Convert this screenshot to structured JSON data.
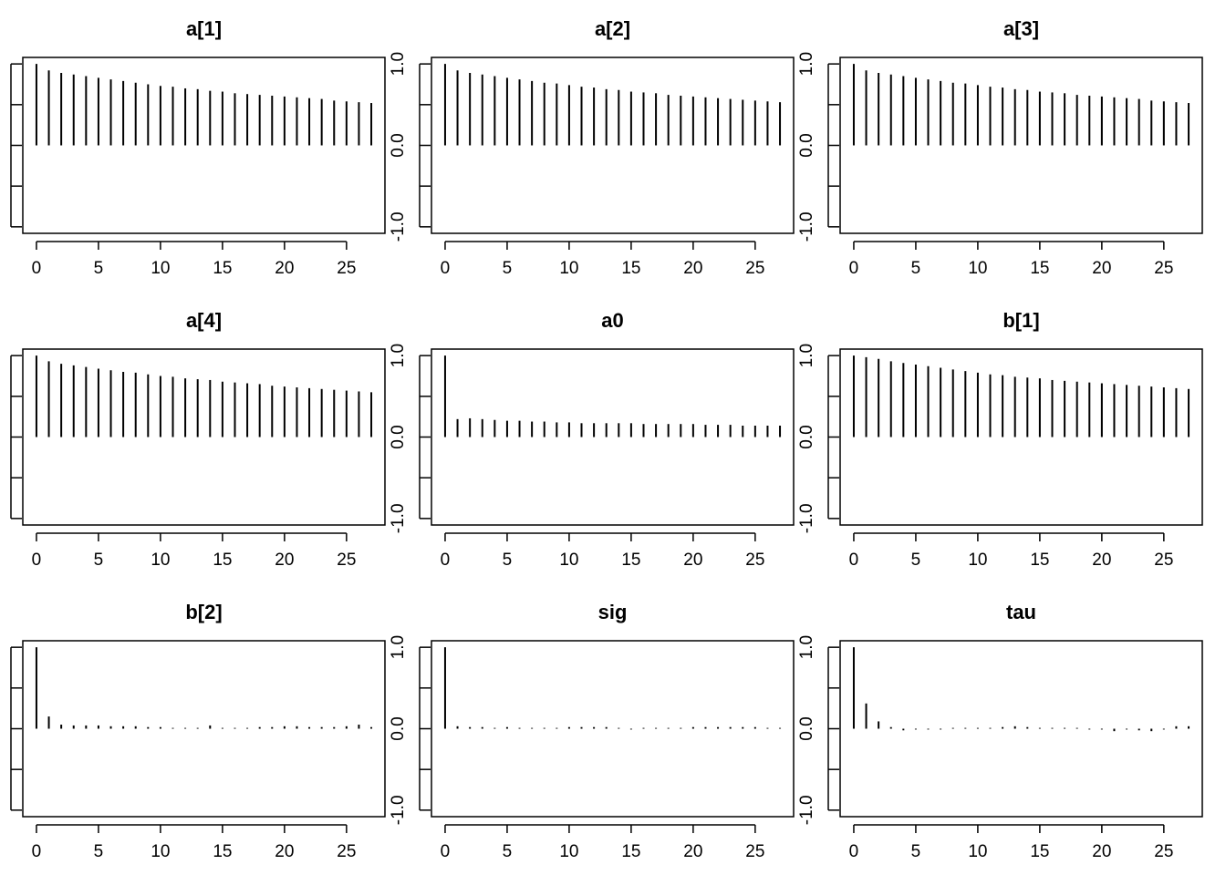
{
  "chart_data": [
    {
      "type": "acf",
      "title": "a[1]",
      "x": [
        0,
        1,
        2,
        3,
        4,
        5,
        6,
        7,
        8,
        9,
        10,
        11,
        12,
        13,
        14,
        15,
        16,
        17,
        18,
        19,
        20,
        21,
        22,
        23,
        24,
        25,
        26,
        27
      ],
      "values": [
        1,
        0.92,
        0.89,
        0.87,
        0.85,
        0.83,
        0.81,
        0.79,
        0.77,
        0.75,
        0.73,
        0.72,
        0.7,
        0.69,
        0.67,
        0.66,
        0.64,
        0.63,
        0.62,
        0.61,
        0.6,
        0.59,
        0.58,
        0.57,
        0.55,
        0.54,
        0.53,
        0.52
      ],
      "color": "#000000",
      "xlim": [
        -1.1,
        28.1
      ],
      "xticks": [
        0,
        5,
        10,
        15,
        20,
        25
      ],
      "ylim": [
        -1.08,
        1.08
      ],
      "yticks": [
        -1,
        -0.5,
        0,
        0.5,
        1
      ]
    },
    {
      "type": "acf",
      "title": "a[2]",
      "x": [
        0,
        1,
        2,
        3,
        4,
        5,
        6,
        7,
        8,
        9,
        10,
        11,
        12,
        13,
        14,
        15,
        16,
        17,
        18,
        19,
        20,
        21,
        22,
        23,
        24,
        25,
        26,
        27
      ],
      "values": [
        1,
        0.92,
        0.89,
        0.87,
        0.85,
        0.83,
        0.81,
        0.79,
        0.77,
        0.76,
        0.74,
        0.72,
        0.71,
        0.69,
        0.68,
        0.66,
        0.65,
        0.64,
        0.62,
        0.61,
        0.6,
        0.59,
        0.58,
        0.57,
        0.56,
        0.55,
        0.54,
        0.53
      ],
      "color": "#000000",
      "xlim": [
        -1.1,
        28.1
      ],
      "xticks": [
        0,
        5,
        10,
        15,
        20,
        25
      ],
      "ylim": [
        -1.08,
        1.08
      ],
      "yticks": [
        -1,
        -0.5,
        0,
        0.5,
        1
      ],
      "ytick_labels": [
        {
          "value": -1,
          "label": "-1.0"
        },
        {
          "value": 0,
          "label": "0.0"
        },
        {
          "value": 1,
          "label": "1.0"
        }
      ]
    },
    {
      "type": "acf",
      "title": "a[3]",
      "x": [
        0,
        1,
        2,
        3,
        4,
        5,
        6,
        7,
        8,
        9,
        10,
        11,
        12,
        13,
        14,
        15,
        16,
        17,
        18,
        19,
        20,
        21,
        22,
        23,
        24,
        25,
        26,
        27
      ],
      "values": [
        1,
        0.92,
        0.89,
        0.87,
        0.85,
        0.83,
        0.81,
        0.79,
        0.77,
        0.76,
        0.74,
        0.72,
        0.71,
        0.69,
        0.68,
        0.66,
        0.65,
        0.64,
        0.62,
        0.61,
        0.6,
        0.59,
        0.58,
        0.57,
        0.55,
        0.54,
        0.53,
        0.52
      ],
      "color": "#000000",
      "xlim": [
        -1.1,
        28.1
      ],
      "xticks": [
        0,
        5,
        10,
        15,
        20,
        25
      ],
      "ylim": [
        -1.08,
        1.08
      ],
      "yticks": [
        -1,
        -0.5,
        0,
        0.5,
        1
      ],
      "ytick_labels": [
        {
          "value": -1,
          "label": "-1.0"
        },
        {
          "value": 0,
          "label": "0.0"
        },
        {
          "value": 1,
          "label": "1.0"
        }
      ]
    },
    {
      "type": "acf",
      "title": "a[4]",
      "x": [
        0,
        1,
        2,
        3,
        4,
        5,
        6,
        7,
        8,
        9,
        10,
        11,
        12,
        13,
        14,
        15,
        16,
        17,
        18,
        19,
        20,
        21,
        22,
        23,
        24,
        25,
        26,
        27
      ],
      "values": [
        1,
        0.93,
        0.9,
        0.88,
        0.86,
        0.84,
        0.82,
        0.8,
        0.79,
        0.77,
        0.75,
        0.74,
        0.72,
        0.71,
        0.7,
        0.68,
        0.67,
        0.66,
        0.65,
        0.63,
        0.62,
        0.61,
        0.6,
        0.59,
        0.58,
        0.57,
        0.56,
        0.55
      ],
      "color": "#000000",
      "xlim": [
        -1.1,
        28.1
      ],
      "xticks": [
        0,
        5,
        10,
        15,
        20,
        25
      ],
      "ylim": [
        -1.08,
        1.08
      ],
      "yticks": [
        -1,
        -0.5,
        0,
        0.5,
        1
      ]
    },
    {
      "type": "acf",
      "title": "a0",
      "x": [
        0,
        1,
        2,
        3,
        4,
        5,
        6,
        7,
        8,
        9,
        10,
        11,
        12,
        13,
        14,
        15,
        16,
        17,
        18,
        19,
        20,
        21,
        22,
        23,
        24,
        25,
        26,
        27
      ],
      "values": [
        1,
        0.22,
        0.23,
        0.22,
        0.21,
        0.2,
        0.2,
        0.19,
        0.19,
        0.18,
        0.18,
        0.17,
        0.17,
        0.17,
        0.17,
        0.17,
        0.16,
        0.16,
        0.16,
        0.16,
        0.16,
        0.15,
        0.15,
        0.15,
        0.14,
        0.14,
        0.14,
        0.14
      ],
      "color": "#000000",
      "xlim": [
        -1.1,
        28.1
      ],
      "xticks": [
        0,
        5,
        10,
        15,
        20,
        25
      ],
      "ylim": [
        -1.08,
        1.08
      ],
      "yticks": [
        -1,
        -0.5,
        0,
        0.5,
        1
      ],
      "ytick_labels": [
        {
          "value": -1,
          "label": "-1.0"
        },
        {
          "value": 0,
          "label": "0.0"
        },
        {
          "value": 1,
          "label": "1.0"
        }
      ]
    },
    {
      "type": "acf",
      "title": "b[1]",
      "x": [
        0,
        1,
        2,
        3,
        4,
        5,
        6,
        7,
        8,
        9,
        10,
        11,
        12,
        13,
        14,
        15,
        16,
        17,
        18,
        19,
        20,
        21,
        22,
        23,
        24,
        25,
        26,
        27
      ],
      "values": [
        1,
        0.98,
        0.96,
        0.93,
        0.91,
        0.89,
        0.87,
        0.85,
        0.83,
        0.81,
        0.79,
        0.77,
        0.76,
        0.74,
        0.73,
        0.72,
        0.7,
        0.69,
        0.68,
        0.67,
        0.66,
        0.65,
        0.64,
        0.63,
        0.62,
        0.61,
        0.6,
        0.59
      ],
      "color": "#000000",
      "xlim": [
        -1.1,
        28.1
      ],
      "xticks": [
        0,
        5,
        10,
        15,
        20,
        25
      ],
      "ylim": [
        -1.08,
        1.08
      ],
      "yticks": [
        -1,
        -0.5,
        0,
        0.5,
        1
      ],
      "ytick_labels": [
        {
          "value": -1,
          "label": "-1.0"
        },
        {
          "value": 0,
          "label": "0.0"
        },
        {
          "value": 1,
          "label": "1.0"
        }
      ]
    },
    {
      "type": "acf",
      "title": "b[2]",
      "x": [
        0,
        1,
        2,
        3,
        4,
        5,
        6,
        7,
        8,
        9,
        10,
        11,
        12,
        13,
        14,
        15,
        16,
        17,
        18,
        19,
        20,
        21,
        22,
        23,
        24,
        25,
        26,
        27
      ],
      "values": [
        1,
        0.15,
        0.05,
        0.04,
        0.04,
        0.04,
        0.03,
        0.03,
        0.03,
        0.02,
        0.02,
        0.01,
        0.01,
        0.01,
        0.04,
        0.01,
        0.01,
        0.01,
        0.02,
        0.02,
        0.03,
        0.03,
        0.02,
        0.02,
        0.02,
        0.03,
        0.05,
        0.02
      ],
      "color": "#000000",
      "xlim": [
        -1.1,
        28.1
      ],
      "xticks": [
        0,
        5,
        10,
        15,
        20,
        25
      ],
      "ylim": [
        -1.08,
        1.08
      ],
      "yticks": [
        -1,
        -0.5,
        0,
        0.5,
        1
      ]
    },
    {
      "type": "acf",
      "title": "sig",
      "x": [
        0,
        1,
        2,
        3,
        4,
        5,
        6,
        7,
        8,
        9,
        10,
        11,
        12,
        13,
        14,
        15,
        16,
        17,
        18,
        19,
        20,
        21,
        22,
        23,
        24,
        25,
        26,
        27
      ],
      "values": [
        1,
        0.03,
        0.02,
        0.02,
        0.01,
        0.02,
        0.01,
        0.01,
        0.01,
        0.01,
        0.02,
        0.02,
        0.02,
        0.02,
        0.01,
        -0.01,
        0.01,
        0.01,
        0.01,
        0.01,
        0.02,
        0.02,
        0.02,
        0.02,
        0.02,
        0.02,
        0.01,
        0.01
      ],
      "color": "#000000",
      "xlim": [
        -1.1,
        28.1
      ],
      "xticks": [
        0,
        5,
        10,
        15,
        20,
        25
      ],
      "ylim": [
        -1.08,
        1.08
      ],
      "yticks": [
        -1,
        -0.5,
        0,
        0.5,
        1
      ],
      "ytick_labels": [
        {
          "value": -1,
          "label": "-1.0"
        },
        {
          "value": 0,
          "label": "0.0"
        },
        {
          "value": 1,
          "label": "1.0"
        }
      ]
    },
    {
      "type": "acf",
      "title": "tau",
      "x": [
        0,
        1,
        2,
        3,
        4,
        5,
        6,
        7,
        8,
        9,
        10,
        11,
        12,
        13,
        14,
        15,
        16,
        17,
        18,
        19,
        20,
        21,
        22,
        23,
        24,
        25,
        26,
        27
      ],
      "values": [
        1,
        0.31,
        0.09,
        0.02,
        -0.02,
        -0.01,
        -0.01,
        -0.01,
        0.01,
        0.01,
        0.01,
        0.01,
        0.02,
        0.03,
        0.02,
        0.01,
        0.01,
        0.01,
        0.01,
        -0.01,
        -0.01,
        -0.03,
        -0.01,
        -0.02,
        -0.03,
        -0.01,
        0.03,
        0.03
      ],
      "color": "#000000",
      "xlim": [
        -1.1,
        28.1
      ],
      "xticks": [
        0,
        5,
        10,
        15,
        20,
        25
      ],
      "ylim": [
        -1.08,
        1.08
      ],
      "yticks": [
        -1,
        -0.5,
        0,
        0.5,
        1
      ],
      "ytick_labels": [
        {
          "value": -1,
          "label": "-1.0"
        },
        {
          "value": 0,
          "label": "0.0"
        },
        {
          "value": 1,
          "label": "1.0"
        }
      ]
    }
  ]
}
